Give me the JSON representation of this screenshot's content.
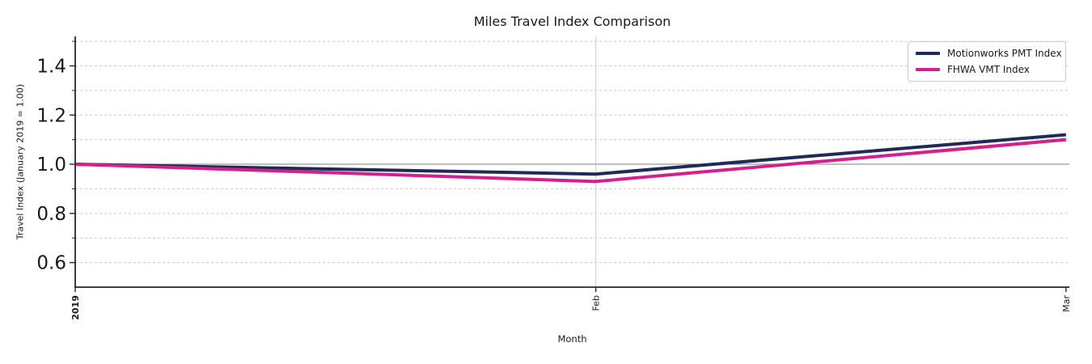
{
  "styles": {
    "background": "#ffffff",
    "grid_color": "#c9c9c9",
    "vgrid_color": "#cfcfcf",
    "spine_color": "#262626",
    "ref_line_color": "#7f7f7f",
    "tick_label_color": "#1a1a1a",
    "legend_border": "#cccccc"
  },
  "chart_data": {
    "type": "line",
    "title": "Miles Travel Index Comparison",
    "xlabel": "Month",
    "ylabel": "Travel Index (January 2019 = 1.00)",
    "categories": [
      "Jan 2019",
      "Feb 2019",
      "Mar 2019"
    ],
    "x_tick_labels": [
      "2019",
      "Feb",
      "Mar"
    ],
    "x_tick_bold": [
      true,
      false,
      false
    ],
    "x_day_offsets": [
      0,
      31,
      59
    ],
    "xlim_days": [
      0,
      59.2
    ],
    "ylim": [
      0.5,
      1.52
    ],
    "y_major_ticks": [
      0.6,
      0.8,
      1.0,
      1.2,
      1.4
    ],
    "y_minor_gridlines": [
      0.7,
      0.9,
      1.1,
      1.3,
      1.5
    ],
    "reference_line_y": 1.0,
    "grid": true,
    "legend_position": "upper right",
    "series": [
      {
        "name": "Motionworks PMT Index",
        "color": "#1f2a57",
        "values": [
          1.0,
          0.96,
          1.12
        ]
      },
      {
        "name": "FHWA VMT Index",
        "color": "#d4208c",
        "values": [
          1.0,
          0.93,
          1.1
        ]
      }
    ]
  }
}
